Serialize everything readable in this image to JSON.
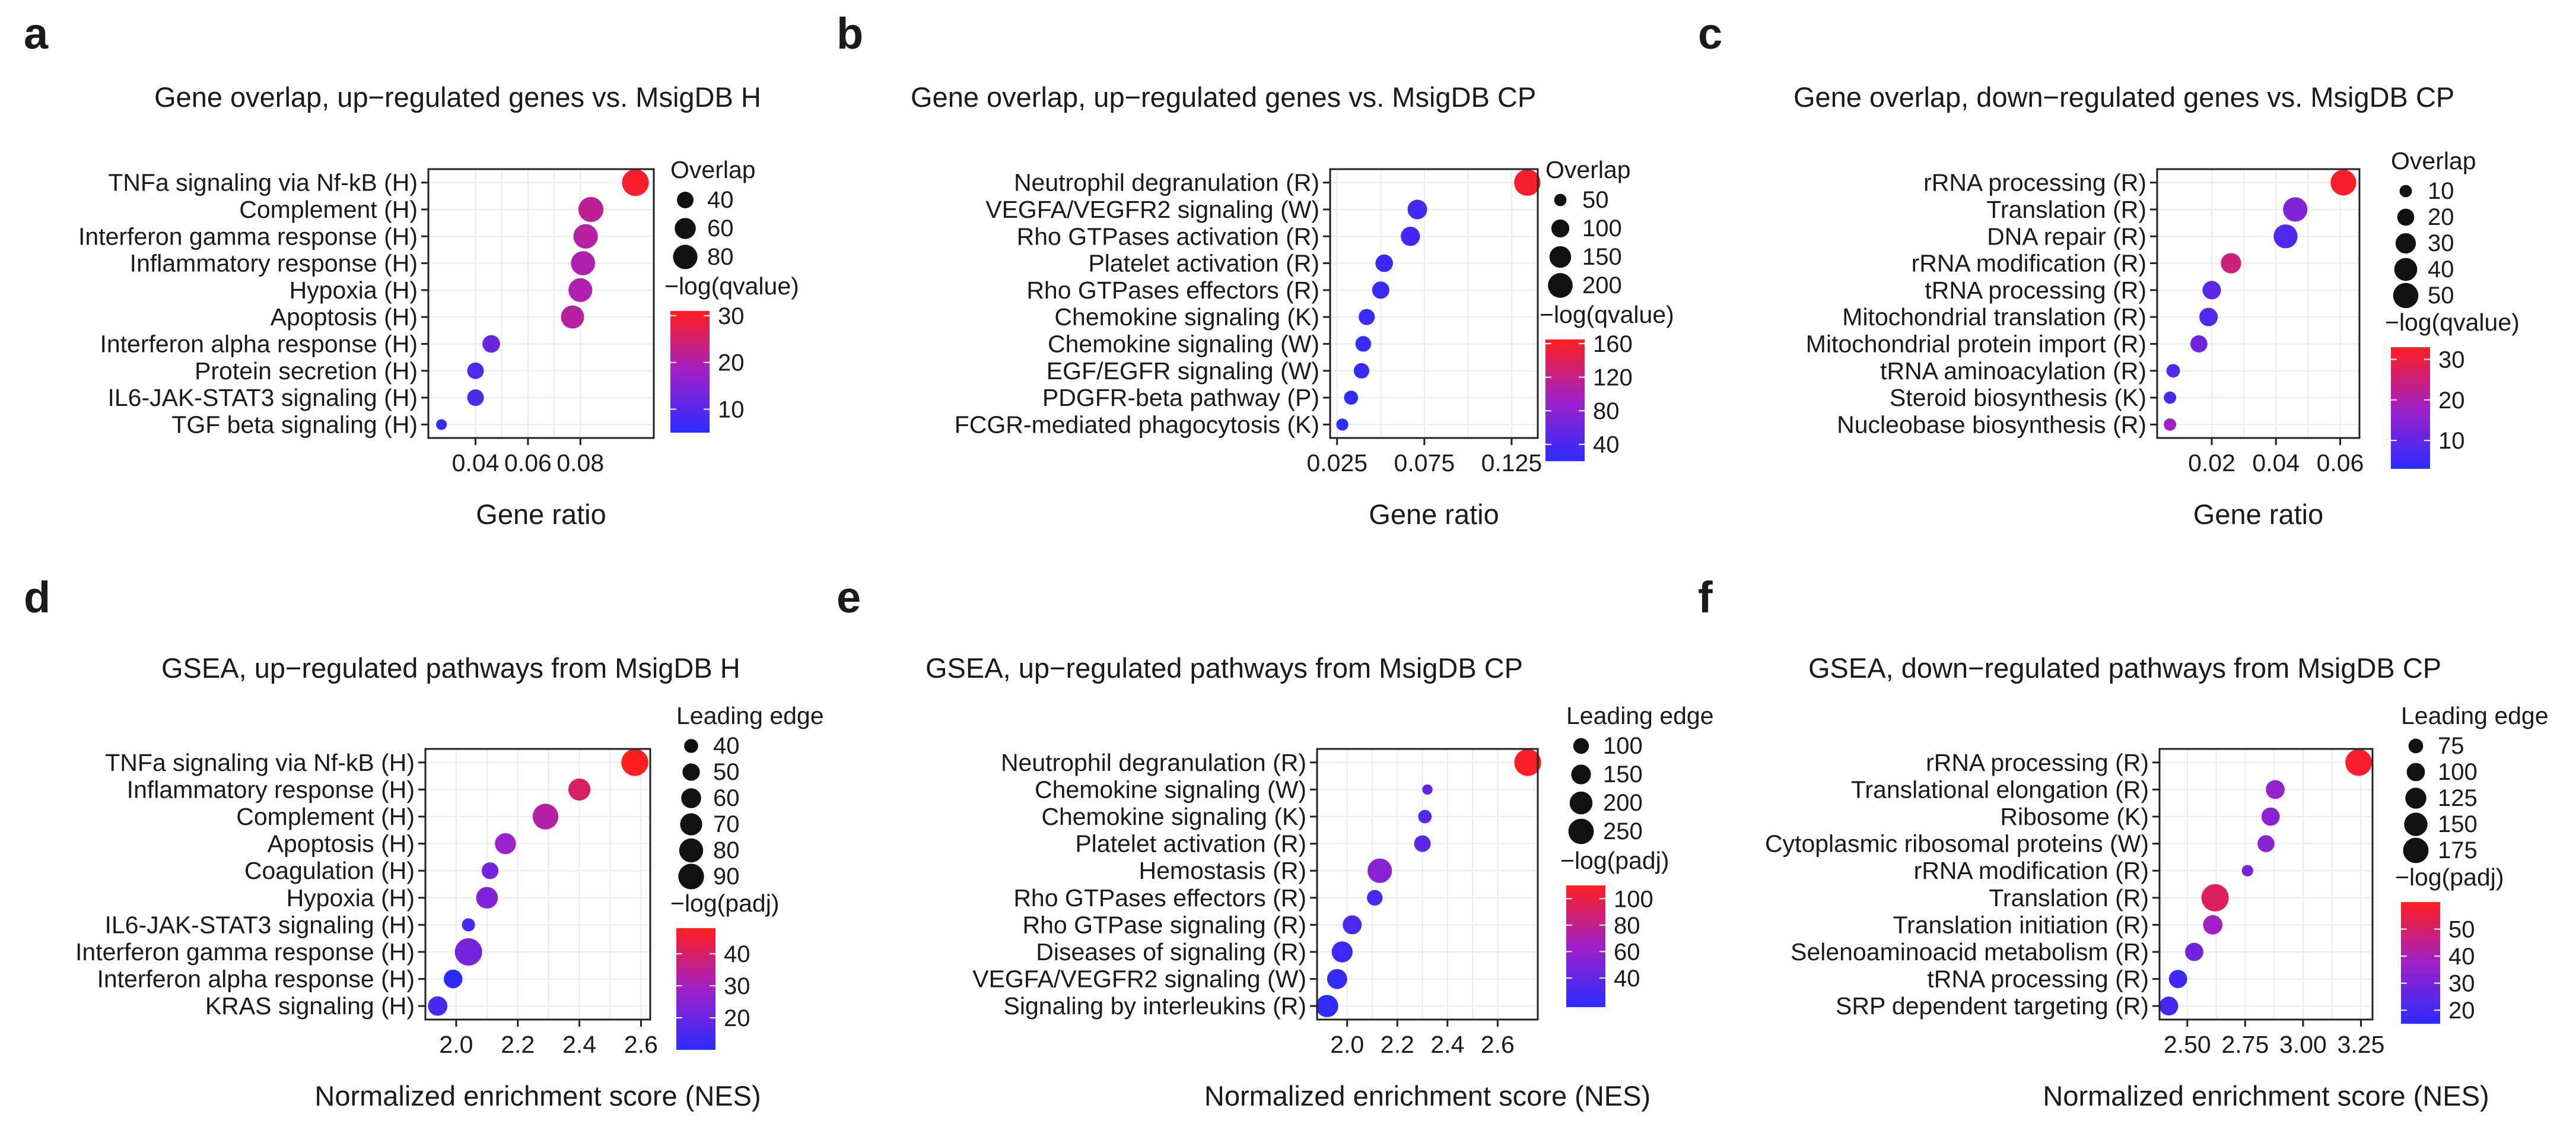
{
  "colors": {
    "low": "#2b2bff",
    "mid": "#a020c8",
    "high": "#ff1f1f"
  },
  "panels": [
    {
      "id": "a",
      "panel_label": "a",
      "chart_data": {
        "type": "scatter",
        "title": "Gene overlap, up−regulated genes vs. MsigDB H",
        "xlabel": "Gene ratio",
        "xlim": [
          0.022,
          0.108
        ],
        "xticks": [
          0.04,
          0.06,
          0.08
        ],
        "xtick_labels": [
          "0.04",
          "0.06",
          "0.08"
        ],
        "categories": [
          "TNFa signaling via Nf-kB (H)",
          "Complement (H)",
          "Interferon gamma response (H)",
          "Inflammatory response (H)",
          "Hypoxia (H)",
          "Apoptosis (H)",
          "Interferon alpha response (H)",
          "Protein secretion (H)",
          "IL6-JAK-STAT3 signaling (H)",
          "TGF beta signaling (H)"
        ],
        "x": [
          0.101,
          0.084,
          0.082,
          0.081,
          0.08,
          0.077,
          0.046,
          0.04,
          0.04,
          0.027
        ],
        "size": [
          96,
          84,
          80,
          78,
          76,
          72,
          44,
          40,
          40,
          24
        ],
        "color": [
          30,
          22,
          21,
          20,
          20,
          21,
          12,
          9,
          9,
          6
        ],
        "size_legend": {
          "title": "Overlap",
          "values": [
            40,
            60,
            80
          ],
          "labels": [
            "40",
            "60",
            "80"
          ],
          "domain": [
            20,
            100
          ]
        },
        "color_legend": {
          "title": "−log(qvalue)",
          "ticks": [
            10,
            20,
            30
          ],
          "labels": [
            "10",
            "20",
            "30"
          ],
          "domain": [
            5,
            31
          ]
        }
      }
    },
    {
      "id": "b",
      "panel_label": "b",
      "chart_data": {
        "type": "scatter",
        "title": "Gene overlap, up−regulated genes vs. MsigDB CP",
        "xlabel": "Gene ratio",
        "xlim": [
          0.021,
          0.14
        ],
        "xticks": [
          0.025,
          0.075,
          0.125
        ],
        "xtick_labels": [
          "0.025",
          "0.075",
          "0.125"
        ],
        "categories": [
          "Neutrophil degranulation (R)",
          "VEGFA/VEGFR2 signaling (W)",
          "Rho GTPases activation (R)",
          "Platelet activation (R)",
          "Rho GTPases effectors (R)",
          "Chemokine signaling (K)",
          "Chemokine signaling (W)",
          "EGF/EGFR signaling (W)",
          "PDGFR-beta pathway (P)",
          "FCGR-mediated phagocytosis (K)"
        ],
        "x": [
          0.134,
          0.071,
          0.067,
          0.052,
          0.05,
          0.042,
          0.04,
          0.039,
          0.033,
          0.028
        ],
        "size": [
          230,
          120,
          115,
          95,
          92,
          80,
          76,
          74,
          62,
          48
        ],
        "color": [
          160,
          35,
          33,
          30,
          30,
          28,
          28,
          27,
          25,
          22
        ],
        "size_legend": {
          "title": "Overlap",
          "values": [
            50,
            100,
            150,
            200
          ],
          "labels": [
            "50",
            "100",
            "150",
            "200"
          ],
          "domain": [
            30,
            250
          ]
        },
        "color_legend": {
          "title": "−log(qvalue)",
          "ticks": [
            40,
            80,
            120,
            160
          ],
          "labels": [
            "40",
            "80",
            "120",
            "160"
          ],
          "domain": [
            20,
            165
          ]
        }
      }
    },
    {
      "id": "c",
      "panel_label": "c",
      "chart_data": {
        "type": "scatter",
        "title": "Gene overlap, down−regulated genes vs. MsigDB CP",
        "xlabel": "Gene ratio",
        "xlim": [
          0.003,
          0.066
        ],
        "xticks": [
          0.02,
          0.04,
          0.06
        ],
        "xtick_labels": [
          "0.02",
          "0.04",
          "0.06"
        ],
        "categories": [
          "rRNA processing (R)",
          "Translation (R)",
          "DNA repair (R)",
          "rRNA modification (R)",
          "tRNA processing (R)",
          "Mitochondrial translation (R)",
          "Mitochondrial protein import (R)",
          "tRNA aminoacylation (R)",
          "Steroid biosynthesis (K)",
          "Nucleobase biosynthesis (R)"
        ],
        "x": [
          0.061,
          0.046,
          0.043,
          0.026,
          0.02,
          0.019,
          0.016,
          0.008,
          0.007,
          0.007
        ],
        "size": [
          52,
          46,
          44,
          30,
          24,
          24,
          20,
          12,
          10,
          10
        ],
        "color": [
          32,
          14,
          8,
          25,
          9,
          8,
          12,
          8,
          6,
          18
        ],
        "size_legend": {
          "title": "Overlap",
          "values": [
            10,
            20,
            30,
            40,
            50
          ],
          "labels": [
            "10",
            "20",
            "30",
            "40",
            "50"
          ],
          "domain": [
            5,
            60
          ]
        },
        "color_legend": {
          "title": "−log(qvalue)",
          "ticks": [
            10,
            20,
            30
          ],
          "labels": [
            "10",
            "20",
            "30"
          ],
          "domain": [
            3,
            33
          ]
        }
      }
    },
    {
      "id": "d",
      "panel_label": "d",
      "chart_data": {
        "type": "scatter",
        "title": "GSEA, up−regulated pathways from MsigDB H",
        "xlabel": "Normalized enrichment score (NES)",
        "xlim": [
          1.9,
          2.63
        ],
        "xticks": [
          2.0,
          2.2,
          2.4,
          2.6
        ],
        "xtick_labels": [
          "2.0",
          "2.2",
          "2.4",
          "2.6"
        ],
        "categories": [
          "TNFa signaling via Nf-kB (H)",
          "Inflammatory response (H)",
          "Complement (H)",
          "Apoptosis (H)",
          "Coagulation (H)",
          "Hypoxia (H)",
          "IL6-JAK-STAT3 signaling (H)",
          "Interferon gamma response (H)",
          "Interferon alpha response (H)",
          "KRAS signaling (H)"
        ],
        "x": [
          2.58,
          2.4,
          2.29,
          2.16,
          2.11,
          2.1,
          2.04,
          2.04,
          1.99,
          1.94
        ],
        "size": [
          98,
          70,
          90,
          65,
          48,
          68,
          38,
          100,
          55,
          58
        ],
        "color": [
          48,
          40,
          33,
          28,
          22,
          24,
          14,
          22,
          10,
          15
        ],
        "size_legend": {
          "title": "Leading edge",
          "values": [
            40,
            50,
            60,
            70,
            80,
            90
          ],
          "labels": [
            "40",
            "50",
            "60",
            "70",
            "80",
            "90"
          ],
          "domain": [
            30,
            100
          ]
        },
        "color_legend": {
          "title": "−log(padj)",
          "ticks": [
            20,
            30,
            40
          ],
          "labels": [
            "20",
            "30",
            "40"
          ],
          "domain": [
            10,
            48
          ]
        }
      }
    },
    {
      "id": "e",
      "panel_label": "e",
      "chart_data": {
        "type": "scatter",
        "title": "GSEA, up−regulated pathways from MsigDB CP",
        "xlabel": "Normalized enrichment score (NES)",
        "xlim": [
          1.88,
          2.76
        ],
        "xticks": [
          2.0,
          2.2,
          2.4,
          2.6
        ],
        "xtick_labels": [
          "2.0",
          "2.2",
          "2.4",
          "2.6"
        ],
        "categories": [
          "Neutrophil degranulation (R)",
          "Chemokine signaling (W)",
          "Chemokine signaling (K)",
          "Platelet activation (R)",
          "Hemostasis (R)",
          "Rho GTPases effectors (R)",
          "Rho GTPase signaling (R)",
          "Diseases of signaling (R)",
          "VEGFA/VEGFR2 signaling (W)",
          "Signaling by interleukins (R)"
        ],
        "x": [
          2.72,
          2.32,
          2.31,
          2.3,
          2.13,
          2.11,
          2.02,
          1.98,
          1.96,
          1.92
        ],
        "size": [
          280,
          60,
          80,
          110,
          230,
          100,
          140,
          170,
          155,
          190
        ],
        "color": [
          108,
          40,
          35,
          38,
          55,
          30,
          32,
          25,
          22,
          20
        ],
        "size_legend": {
          "title": "Leading edge",
          "values": [
            100,
            150,
            200,
            250
          ],
          "labels": [
            "100",
            "150",
            "200",
            "250"
          ],
          "domain": [
            50,
            290
          ]
        },
        "color_legend": {
          "title": "−log(padj)",
          "ticks": [
            40,
            60,
            80,
            100
          ],
          "labels": [
            "40",
            "60",
            "80",
            "100"
          ],
          "domain": [
            18,
            110
          ]
        }
      }
    },
    {
      "id": "f",
      "panel_label": "f",
      "chart_data": {
        "type": "scatter",
        "title": "GSEA, down−regulated pathways from MsigDB CP",
        "xlabel": "Normalized enrichment score (NES)",
        "xlim": [
          2.38,
          3.3
        ],
        "xticks": [
          2.5,
          2.75,
          3.0,
          3.25
        ],
        "xtick_labels": [
          "2.50",
          "2.75",
          "3.00",
          "3.25"
        ],
        "categories": [
          "rRNA processing (R)",
          "Translational elongation (R)",
          "Ribosome (K)",
          "Cytoplasmic ribosomal proteins (W)",
          "rRNA modification (R)",
          "Translation (R)",
          "Translation initiation (R)",
          "Selenoaminoacid metabolism (R)",
          "tRNA processing (R)",
          "SRP dependent targeting (R)"
        ],
        "x": [
          3.24,
          2.88,
          2.86,
          2.84,
          2.76,
          2.62,
          2.61,
          2.53,
          2.46,
          2.42
        ],
        "size": [
          190,
          105,
          100,
          90,
          60,
          200,
          110,
          100,
          100,
          105
        ],
        "color": [
          58,
          35,
          33,
          33,
          30,
          52,
          38,
          28,
          18,
          20
        ],
        "size_legend": {
          "title": "Leading edge",
          "values": [
            75,
            100,
            125,
            150,
            175
          ],
          "labels": [
            "75",
            "100",
            "125",
            "150",
            "175"
          ],
          "domain": [
            50,
            200
          ]
        },
        "color_legend": {
          "title": "−log(padj)",
          "ticks": [
            20,
            30,
            40,
            50
          ],
          "labels": [
            "20",
            "30",
            "40",
            "50"
          ],
          "domain": [
            15,
            60
          ]
        }
      }
    }
  ]
}
